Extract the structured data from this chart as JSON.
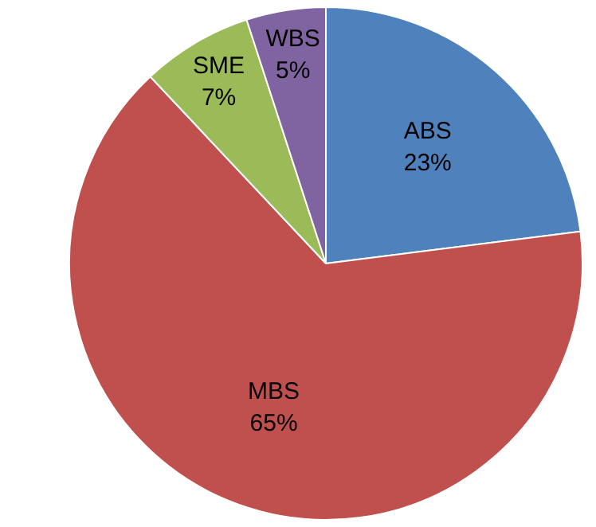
{
  "chart_data": {
    "type": "pie",
    "categories": [
      "ABS",
      "MBS",
      "SME",
      "WBS"
    ],
    "values": [
      23,
      65,
      7,
      5
    ],
    "value_labels": [
      "23%",
      "65%",
      "7%",
      "5%"
    ],
    "colors": [
      "#4f81bd",
      "#c0504d",
      "#9bbb59",
      "#8064a2"
    ],
    "legend": false
  }
}
